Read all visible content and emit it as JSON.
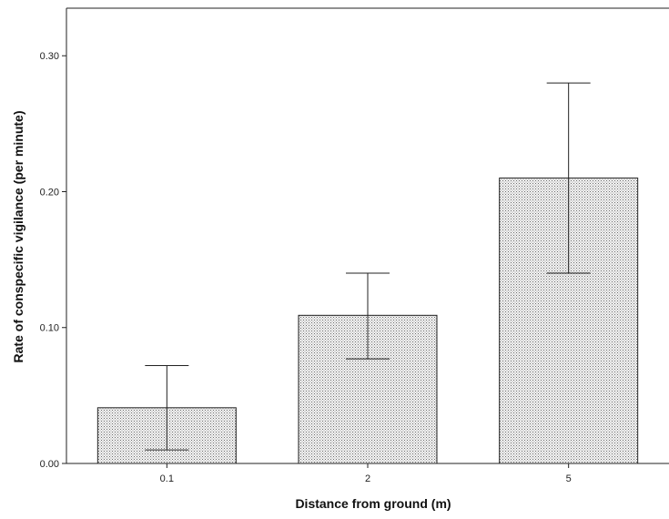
{
  "chart_data": {
    "type": "bar",
    "title": "",
    "xlabel": "Distance from ground (m)",
    "ylabel": "Rate of conspecific vigilance (per minute)",
    "categories": [
      "0.1",
      "2",
      "5"
    ],
    "values": [
      0.041,
      0.109,
      0.21
    ],
    "error_low": [
      0.01,
      0.077,
      0.14
    ],
    "error_high": [
      0.072,
      0.14,
      0.28
    ],
    "ylim": [
      0,
      0.335
    ],
    "yticks": [
      0.0,
      0.1,
      0.2,
      0.3
    ],
    "ytick_labels": [
      "0.00",
      "0.10",
      "0.20",
      "0.30"
    ],
    "grid": false,
    "legend": "none",
    "bar_fill": "stippled grey"
  }
}
